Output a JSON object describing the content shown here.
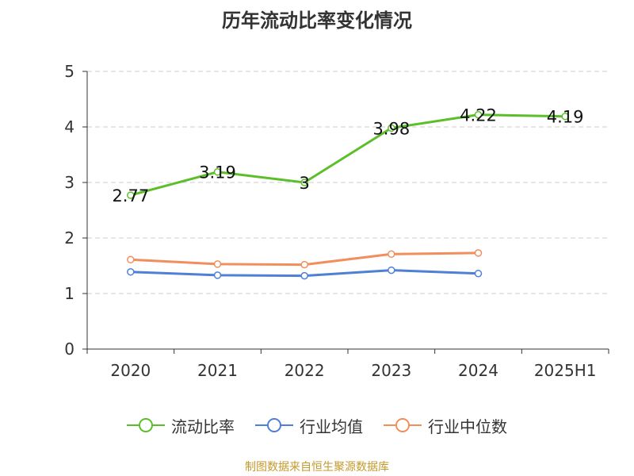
{
  "chart_data": {
    "type": "line",
    "title": "历年流动比率变化情况",
    "categories": [
      "2020",
      "2021",
      "2022",
      "2023",
      "2024",
      "2025H1"
    ],
    "ylim": [
      0,
      5
    ],
    "yticks": [
      "0",
      "1",
      "2",
      "3",
      "4",
      "5"
    ],
    "grid": true,
    "legend_position": "bottom",
    "series": [
      {
        "name": "流动比率",
        "color": "#5cbf2a",
        "values": [
          2.77,
          3.19,
          3,
          3.98,
          4.22,
          4.19
        ],
        "labels": [
          "2.77",
          "3.19",
          "3",
          "3.98",
          "4.22",
          "4.19"
        ]
      },
      {
        "name": "行业均值",
        "color": "#4f7fd8",
        "values": [
          1.39,
          1.33,
          1.32,
          1.42,
          1.36,
          null
        ]
      },
      {
        "name": "行业中位数",
        "color": "#f28e5b",
        "values": [
          1.61,
          1.53,
          1.52,
          1.71,
          1.73,
          null
        ]
      }
    ]
  },
  "footer": {
    "source": "制图数据来自恒生聚源数据库"
  }
}
